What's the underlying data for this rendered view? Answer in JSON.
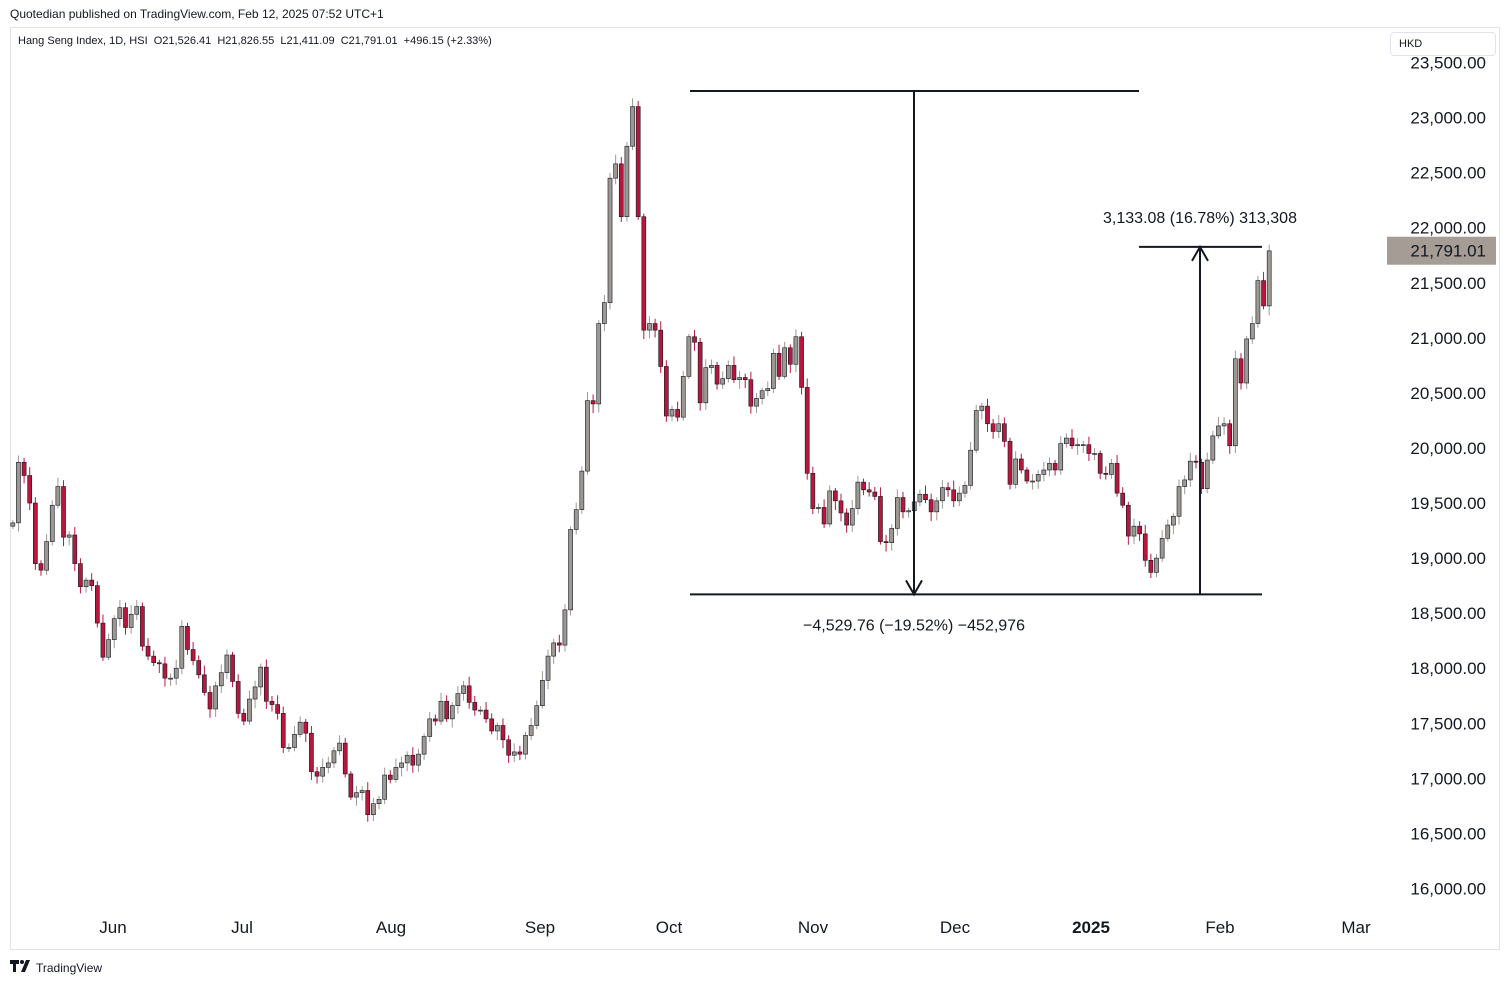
{
  "header": {
    "publisher": "Quotedian published on TradingView.com, Feb 12, 2025 07:52 UTC+1"
  },
  "legend": {
    "ohlc_text": "Hang Seng Index, 1D, HSI  O21,526.41  H21,826.55  L21,411.09  C21,791.01  +496.15 (+2.33%)"
  },
  "currency": "HKD",
  "footer": {
    "brand": "TradingView",
    "logo_icon": "tradingview-logo-icon"
  },
  "colors": {
    "up": "#9e9892",
    "down": "#b8173d",
    "price_label_bg": "#a49c95"
  },
  "chart_data": {
    "type": "candlestick",
    "x_labels": [
      "Jun",
      "Jul",
      "Aug",
      "Sep",
      "Oct",
      "Nov",
      "Dec",
      "2025",
      "Feb",
      "Mar"
    ],
    "y_ticks": [
      "23,500.00",
      "23,000.00",
      "22,500.00",
      "22,000.00",
      "21,500.00",
      "21,000.00",
      "20,500.00",
      "20,000.00",
      "19,500.00",
      "19,000.00",
      "18,500.00",
      "18,000.00",
      "17,500.00",
      "17,000.00",
      "16,500.00",
      "16,000.00"
    ],
    "ylim": [
      15850,
      23750
    ],
    "last_price": {
      "value": 21791.01,
      "label": "21,791.01"
    },
    "measure_down": {
      "label": "−4,529.76 (−19.52%) −452,976",
      "from": 23241,
      "to": 18671
    },
    "measure_up": {
      "label": "3,133.08 (16.78%) 313,308",
      "from": 18671,
      "to": 21826
    },
    "close": [
      19320,
      19870,
      19750,
      19500,
      18950,
      18890,
      19150,
      19480,
      19650,
      19190,
      19210,
      18950,
      18740,
      18800,
      18750,
      18410,
      18100,
      18260,
      18450,
      18550,
      18370,
      18490,
      18560,
      18200,
      18110,
      18050,
      18040,
      17910,
      17910,
      18000,
      18380,
      18170,
      18070,
      17940,
      17780,
      17630,
      17840,
      17960,
      18120,
      17880,
      17590,
      17520,
      17720,
      17830,
      18010,
      17700,
      17670,
      17590,
      17280,
      17280,
      17400,
      17510,
      17410,
      17060,
      17020,
      17100,
      17140,
      17250,
      17320,
      17040,
      16830,
      16870,
      16890,
      16670,
      16770,
      16810,
      17030,
      16990,
      17100,
      17140,
      17210,
      17120,
      17220,
      17380,
      17540,
      17520,
      17700,
      17540,
      17660,
      17770,
      17840,
      17690,
      17620,
      17620,
      17540,
      17430,
      17480,
      17350,
      17210,
      17240,
      17220,
      17390,
      17480,
      17660,
      17890,
      18110,
      18230,
      18210,
      18530,
      19260,
      19440,
      19790,
      20430,
      20400,
      21130,
      21320,
      22450,
      22580,
      22100,
      22740,
      23100,
      22100,
      21070,
      21130,
      21070,
      20740,
      20290,
      20350,
      20280,
      20650,
      21010,
      20960,
      20410,
      20730,
      20750,
      20580,
      20630,
      20750,
      20620,
      20640,
      20620,
      20380,
      20450,
      20520,
      20540,
      20860,
      20650,
      20910,
      20760,
      21010,
      20550,
      19770,
      19450,
      19460,
      19310,
      19610,
      19520,
      19410,
      19300,
      19450,
      19690,
      19620,
      19600,
      19560,
      19150,
      19140,
      19270,
      19550,
      19420,
      19430,
      19510,
      19580,
      19530,
      19420,
      19520,
      19640,
      19620,
      19520,
      19590,
      19660,
      19980,
      20340,
      20380,
      20220,
      20150,
      20220,
      20060,
      19670,
      19900,
      19800,
      19700,
      19700,
      19760,
      19800,
      19860,
      19800,
      20040,
      20090,
      20020,
      20030,
      20030,
      19950,
      19950,
      19770,
      19760,
      19860,
      19590,
      19480,
      19200,
      19290,
      19220,
      18980,
      18870,
      19000,
      19180,
      19300,
      19380,
      19650,
      19710,
      19880,
      19870,
      19630,
      19890,
      20110,
      20200,
      20220,
      20020,
      20810,
      20590,
      20990,
      21130,
      21520,
      21290,
      21790
    ]
  }
}
